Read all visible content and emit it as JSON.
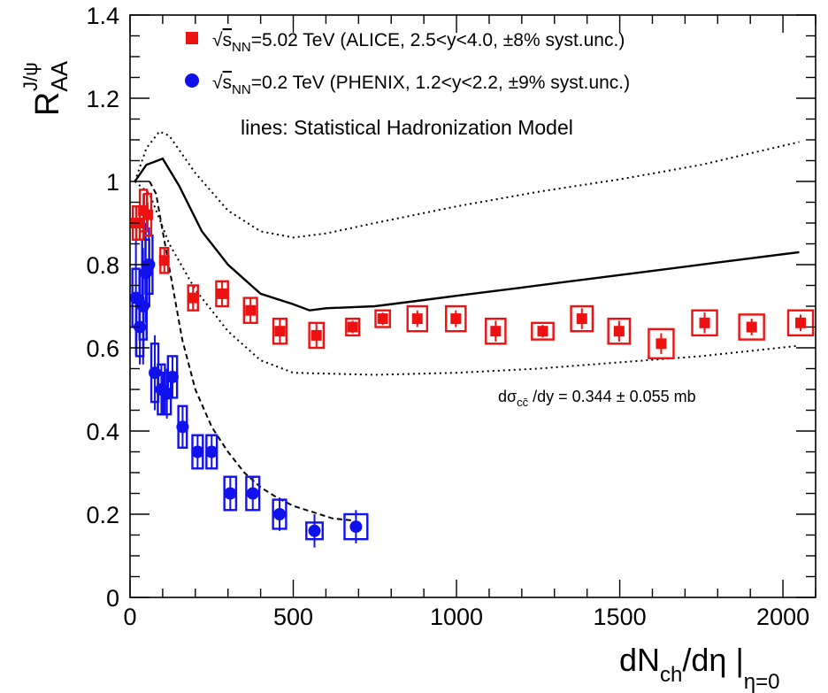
{
  "chart_data": {
    "type": "scatter",
    "title": "",
    "xlabel": {
      "main": "dN",
      "sub": "ch",
      "tail": "/dη |",
      "sub2": "η=0"
    },
    "ylabel": {
      "main": "R",
      "sub": "AA",
      "sup": "J/ψ"
    },
    "xlim": [
      0,
      2100
    ],
    "ylim": [
      0,
      1.4
    ],
    "x_ticks": [
      0,
      500,
      1000,
      1500,
      2000
    ],
    "x_tick_labels": [
      "0",
      "500",
      "1000",
      "1500",
      "2000"
    ],
    "y_ticks": [
      0,
      0.2,
      0.4,
      0.6,
      0.8,
      1.0,
      1.2,
      1.4
    ],
    "y_tick_labels": [
      "0",
      "0.2",
      "0.4",
      "0.6",
      "0.8",
      "1",
      "1.2",
      "1.4"
    ],
    "grid": false,
    "legend_position": "top",
    "legend": [
      {
        "prefix": "√",
        "var": "s",
        "sub": "NN",
        "text": "=5.02 TeV (ALICE, 2.5<y<4.0, ±8% syst.unc.)",
        "marker": "square",
        "color": "#ee1111"
      },
      {
        "prefix": "√",
        "var": "s",
        "sub": "NN",
        "text": "=0.2 TeV (PHENIX, 1.2<y<2.2, ±9% syst.unc.)",
        "marker": "circle",
        "color": "#1111ee"
      }
    ],
    "annotations": {
      "lines_note": "lines: Statistical Hadronization Model",
      "cross_section": {
        "pre": "dσ",
        "sub": "cc̄",
        "post": " /dy = 0.344 ± 0.055 mb"
      }
    },
    "series": [
      {
        "name": "ALICE",
        "color": "#ee1111",
        "marker": "square",
        "points": [
          {
            "x": 19,
            "y": 0.9,
            "err": 0.03,
            "sx": 8,
            "sy": 0.04
          },
          {
            "x": 30,
            "y": 0.9,
            "err": 0.03,
            "sx": 8,
            "sy": 0.04
          },
          {
            "x": 41,
            "y": 0.93,
            "err": 0.04,
            "sx": 8,
            "sy": 0.05
          },
          {
            "x": 54,
            "y": 0.92,
            "err": 0.03,
            "sx": 8,
            "sy": 0.05
          },
          {
            "x": 105,
            "y": 0.81,
            "err": 0.03,
            "sx": 12,
            "sy": 0.03
          },
          {
            "x": 193,
            "y": 0.72,
            "err": 0.03,
            "sx": 15,
            "sy": 0.03
          },
          {
            "x": 282,
            "y": 0.73,
            "err": 0.03,
            "sx": 18,
            "sy": 0.03
          },
          {
            "x": 369,
            "y": 0.69,
            "err": 0.03,
            "sx": 20,
            "sy": 0.03
          },
          {
            "x": 459,
            "y": 0.64,
            "err": 0.03,
            "sx": 20,
            "sy": 0.03
          },
          {
            "x": 571,
            "y": 0.63,
            "err": 0.03,
            "sx": 22,
            "sy": 0.03
          },
          {
            "x": 682,
            "y": 0.65,
            "err": 0.015,
            "sx": 20,
            "sy": 0.02
          },
          {
            "x": 774,
            "y": 0.67,
            "err": 0.015,
            "sx": 22,
            "sy": 0.02
          },
          {
            "x": 880,
            "y": 0.67,
            "err": 0.02,
            "sx": 30,
            "sy": 0.03
          },
          {
            "x": 998,
            "y": 0.67,
            "err": 0.02,
            "sx": 30,
            "sy": 0.03
          },
          {
            "x": 1120,
            "y": 0.64,
            "err": 0.025,
            "sx": 30,
            "sy": 0.03
          },
          {
            "x": 1264,
            "y": 0.64,
            "err": 0.015,
            "sx": 33,
            "sy": 0.02
          },
          {
            "x": 1384,
            "y": 0.67,
            "err": 0.025,
            "sx": 33,
            "sy": 0.03
          },
          {
            "x": 1498,
            "y": 0.64,
            "err": 0.025,
            "sx": 33,
            "sy": 0.03
          },
          {
            "x": 1627,
            "y": 0.61,
            "err": 0.025,
            "sx": 38,
            "sy": 0.035
          },
          {
            "x": 1760,
            "y": 0.66,
            "err": 0.025,
            "sx": 38,
            "sy": 0.03
          },
          {
            "x": 1904,
            "y": 0.65,
            "err": 0.02,
            "sx": 38,
            "sy": 0.03
          },
          {
            "x": 2054,
            "y": 0.66,
            "err": 0.02,
            "sx": 38,
            "sy": 0.03
          }
        ]
      },
      {
        "name": "PHENIX",
        "color": "#1111ee",
        "marker": "circle",
        "points": [
          {
            "x": 18,
            "y": 0.72,
            "err": 0.14,
            "sx": 5,
            "sy": 0.07
          },
          {
            "x": 30,
            "y": 0.65,
            "err": 0.09,
            "sx": 5,
            "sy": 0.07
          },
          {
            "x": 40,
            "y": 0.7,
            "err": 0.14,
            "sx": 5,
            "sy": 0.08
          },
          {
            "x": 48,
            "y": 0.78,
            "err": 0.12,
            "sx": 5,
            "sy": 0.08
          },
          {
            "x": 58,
            "y": 0.8,
            "err": 0.09,
            "sx": 6,
            "sy": 0.07
          },
          {
            "x": 76,
            "y": 0.54,
            "err": 0.09,
            "sx": 9,
            "sy": 0.07
          },
          {
            "x": 96,
            "y": 0.5,
            "err": 0.06,
            "sx": 10,
            "sy": 0.06
          },
          {
            "x": 113,
            "y": 0.49,
            "err": 0.06,
            "sx": 12,
            "sy": 0.05
          },
          {
            "x": 130,
            "y": 0.53,
            "err": 0.05,
            "sx": 14,
            "sy": 0.05
          },
          {
            "x": 161,
            "y": 0.41,
            "err": 0.05,
            "sx": 13,
            "sy": 0.05
          },
          {
            "x": 207,
            "y": 0.35,
            "err": 0.04,
            "sx": 16,
            "sy": 0.04
          },
          {
            "x": 250,
            "y": 0.35,
            "err": 0.04,
            "sx": 16,
            "sy": 0.04
          },
          {
            "x": 307,
            "y": 0.25,
            "err": 0.04,
            "sx": 18,
            "sy": 0.04
          },
          {
            "x": 376,
            "y": 0.25,
            "err": 0.04,
            "sx": 20,
            "sy": 0.04
          },
          {
            "x": 458,
            "y": 0.2,
            "err": 0.04,
            "sx": 20,
            "sy": 0.035
          },
          {
            "x": 565,
            "y": 0.16,
            "err": 0.04,
            "sx": 25,
            "sy": 0.02
          },
          {
            "x": 692,
            "y": 0.17,
            "err": 0.04,
            "sx": 35,
            "sy": 0.03
          }
        ]
      }
    ],
    "model_curves": [
      {
        "id": "shm-lhc-central",
        "style": "solid",
        "points": [
          [
            15,
            1.0
          ],
          [
            50,
            1.04
          ],
          [
            100,
            1.055
          ],
          [
            150,
            0.99
          ],
          [
            220,
            0.88
          ],
          [
            300,
            0.8
          ],
          [
            400,
            0.73
          ],
          [
            500,
            0.705
          ],
          [
            550,
            0.69
          ],
          [
            600,
            0.695
          ],
          [
            750,
            0.7
          ],
          [
            900,
            0.715
          ],
          [
            1000,
            0.725
          ],
          [
            1200,
            0.745
          ],
          [
            1400,
            0.765
          ],
          [
            1600,
            0.785
          ],
          [
            1800,
            0.805
          ],
          [
            2050,
            0.83
          ]
        ]
      },
      {
        "id": "shm-lhc-upper",
        "style": "dotted",
        "points": [
          [
            15,
            1.0
          ],
          [
            50,
            1.08
          ],
          [
            90,
            1.12
          ],
          [
            120,
            1.11
          ],
          [
            200,
            1.02
          ],
          [
            300,
            0.93
          ],
          [
            400,
            0.88
          ],
          [
            500,
            0.865
          ],
          [
            600,
            0.875
          ],
          [
            750,
            0.9
          ],
          [
            1000,
            0.94
          ],
          [
            1250,
            0.975
          ],
          [
            1500,
            1.005
          ],
          [
            1750,
            1.04
          ],
          [
            2050,
            1.095
          ]
        ]
      },
      {
        "id": "shm-lhc-lower",
        "style": "dotted",
        "points": [
          [
            15,
            1.0
          ],
          [
            60,
            0.97
          ],
          [
            120,
            0.85
          ],
          [
            200,
            0.74
          ],
          [
            300,
            0.64
          ],
          [
            400,
            0.57
          ],
          [
            500,
            0.54
          ],
          [
            750,
            0.535
          ],
          [
            1000,
            0.54
          ],
          [
            1250,
            0.55
          ],
          [
            1500,
            0.565
          ],
          [
            1750,
            0.58
          ],
          [
            2050,
            0.605
          ]
        ]
      },
      {
        "id": "shm-rhic",
        "style": "dashed",
        "points": [
          [
            60,
            1.0
          ],
          [
            80,
            0.97
          ],
          [
            100,
            0.88
          ],
          [
            130,
            0.75
          ],
          [
            160,
            0.62
          ],
          [
            200,
            0.5
          ],
          [
            250,
            0.41
          ],
          [
            300,
            0.35
          ],
          [
            350,
            0.3
          ],
          [
            400,
            0.265
          ],
          [
            450,
            0.24
          ],
          [
            500,
            0.22
          ],
          [
            560,
            0.205
          ],
          [
            620,
            0.19
          ],
          [
            680,
            0.185
          ]
        ]
      }
    ]
  }
}
